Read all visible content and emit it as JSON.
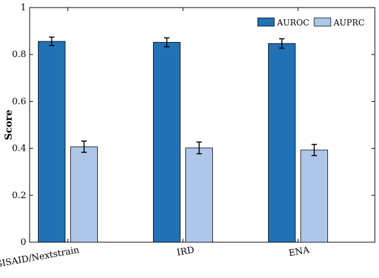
{
  "chart_data": {
    "type": "bar",
    "categories": [
      "GISAID/Nextstrain",
      "IRD",
      "ENA"
    ],
    "series": [
      {
        "name": "AUROC",
        "values": [
          0.856,
          0.852,
          0.847
        ],
        "errors": [
          0.018,
          0.019,
          0.02
        ],
        "color": "#2171b5"
      },
      {
        "name": "AUPRC",
        "values": [
          0.407,
          0.402,
          0.393
        ],
        "errors": [
          0.024,
          0.025,
          0.024
        ],
        "color": "#aec7e8"
      }
    ],
    "ylabel": "Score",
    "ylim": [
      0,
      1
    ],
    "yticks": [
      0,
      0.2,
      0.4,
      0.6,
      0.8,
      1
    ],
    "ytick_labels": [
      "0",
      "0.2",
      "0.4",
      "0.6",
      "0.8",
      "1"
    ],
    "legend_position": "top-right",
    "grid": false
  }
}
